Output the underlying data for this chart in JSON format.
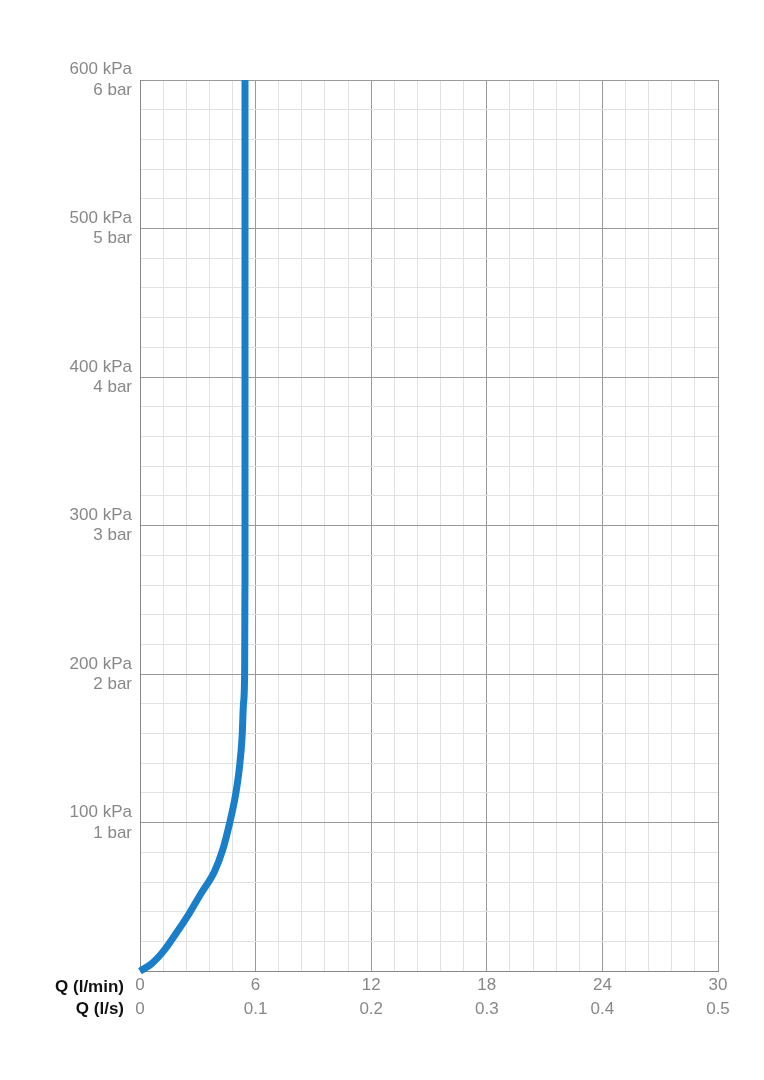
{
  "chart_data": {
    "type": "line",
    "xlabel": "Q (l/min)",
    "x2label": "Q (l/s)",
    "xlim": [
      0,
      30
    ],
    "ylim": [
      0,
      600
    ],
    "x2lim": [
      0,
      0.5
    ],
    "y2lim": [
      0,
      6
    ],
    "xticks": [
      0,
      {
        "value": 1.2,
        "label": null
      },
      {
        "value": 2.4,
        "label": null
      },
      {
        "value": 3.6,
        "label": null
      },
      {
        "value": 4.8,
        "label": null
      },
      6,
      {
        "value": 7.2,
        "label": null
      },
      {
        "value": 8.4,
        "label": null
      },
      {
        "value": 9.6,
        "label": null
      },
      {
        "value": 10.8,
        "label": null
      },
      12,
      {
        "value": 13.2,
        "label": null
      },
      {
        "value": 14.4,
        "label": null
      },
      {
        "value": 15.6,
        "label": null
      },
      {
        "value": 16.8,
        "label": null
      },
      18,
      {
        "value": 19.2,
        "label": null
      },
      {
        "value": 20.4,
        "label": null
      },
      {
        "value": 21.6,
        "label": null
      },
      {
        "value": 22.8,
        "label": null
      },
      24,
      {
        "value": 25.2,
        "label": null
      },
      {
        "value": 26.4,
        "label": null
      },
      {
        "value": 27.6,
        "label": null
      },
      {
        "value": 28.8,
        "label": null
      },
      30
    ],
    "x2ticks": [
      0,
      0.1,
      0.2,
      0.3,
      0.4,
      0.5
    ],
    "yticks": [
      {
        "value": 0,
        "label": null
      },
      {
        "value": 20,
        "label": null
      },
      {
        "value": 40,
        "label": null
      },
      {
        "value": 60,
        "label": null
      },
      {
        "value": 80,
        "label": null
      },
      {
        "value": 100,
        "label": "100 kPa"
      },
      {
        "value": 120,
        "label": null
      },
      {
        "value": 140,
        "label": null
      },
      {
        "value": 160,
        "label": null
      },
      {
        "value": 180,
        "label": null
      },
      {
        "value": 200,
        "label": "200 kPa"
      },
      {
        "value": 220,
        "label": null
      },
      {
        "value": 240,
        "label": null
      },
      {
        "value": 260,
        "label": null
      },
      {
        "value": 280,
        "label": null
      },
      {
        "value": 300,
        "label": "300 kPa"
      },
      {
        "value": 320,
        "label": null
      },
      {
        "value": 340,
        "label": null
      },
      {
        "value": 360,
        "label": null
      },
      {
        "value": 380,
        "label": null
      },
      {
        "value": 400,
        "label": "400 kPa"
      },
      {
        "value": 420,
        "label": null
      },
      {
        "value": 440,
        "label": null
      },
      {
        "value": 460,
        "label": null
      },
      {
        "value": 480,
        "label": null
      },
      {
        "value": 500,
        "label": "500 kPa"
      },
      {
        "value": 520,
        "label": null
      },
      {
        "value": 540,
        "label": null
      },
      {
        "value": 560,
        "label": null
      },
      {
        "value": 580,
        "label": null
      },
      {
        "value": 600,
        "label": "600 kPa"
      }
    ],
    "y2ticks": [
      {
        "value": 1,
        "label": "1 bar"
      },
      {
        "value": 2,
        "label": "2 bar"
      },
      {
        "value": 3,
        "label": "3 bar"
      },
      {
        "value": 4,
        "label": "4 bar"
      },
      {
        "value": 5,
        "label": "5 bar"
      },
      {
        "value": 6,
        "label": "6 bar"
      }
    ],
    "grid": true,
    "marker": "none",
    "line_style": "solid",
    "series": [
      {
        "color": "#1a7fc8",
        "x": [
          0,
          0.6,
          1.25,
          1.9,
          2.56,
          3.2,
          3.86,
          4.3,
          4.64,
          4.95,
          5.16,
          5.3,
          5.37,
          5.43,
          5.45,
          5.45
        ],
        "values": [
          0,
          5,
          14,
          26,
          39,
          53,
          67,
          82,
          99,
          118,
          137,
          158,
          180,
          200,
          260,
          600
        ]
      }
    ]
  }
}
